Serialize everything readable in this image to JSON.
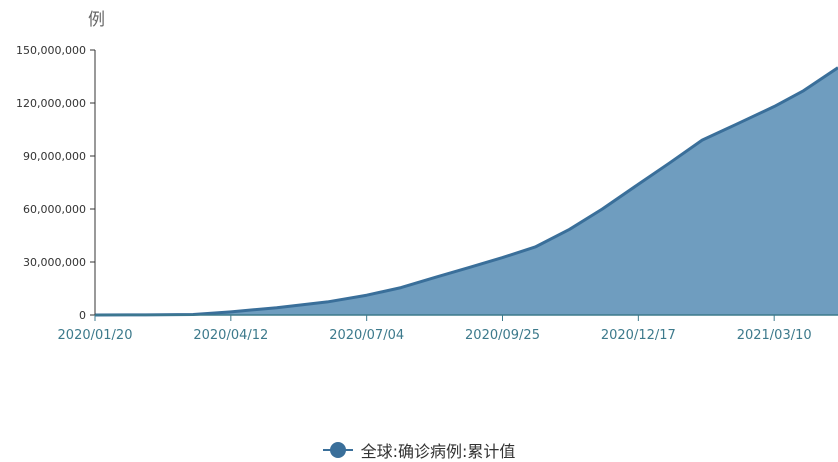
{
  "chart_data": {
    "type": "area",
    "ylabel": "例",
    "ylim": [
      0,
      150000000
    ],
    "yticks": [
      0,
      30000000,
      60000000,
      90000000,
      120000000,
      150000000
    ],
    "ytick_labels": [
      "0",
      "30,000,000",
      "60,000,000",
      "90,000,000",
      "120,000,000",
      "150,000,000"
    ],
    "xtick_labels": [
      "2020/01/20",
      "2020/04/12",
      "2020/07/04",
      "2020/09/25",
      "2020/12/17",
      "2021/03/10"
    ],
    "x_range": [
      "2020/01/20",
      "2021/04/18"
    ],
    "series": [
      {
        "name": "全球:确诊病例:累计值",
        "color": "#3a6f9a",
        "fill": "#6f9dbf",
        "points": [
          [
            "2020/01/20",
            0
          ],
          [
            "2020/02/20",
            80000
          ],
          [
            "2020/03/20",
            300000
          ],
          [
            "2020/04/12",
            1800000
          ],
          [
            "2020/05/10",
            4100000
          ],
          [
            "2020/06/10",
            7400000
          ],
          [
            "2020/07/04",
            11200000
          ],
          [
            "2020/07/25",
            15500000
          ],
          [
            "2020/08/15",
            21300000
          ],
          [
            "2020/09/05",
            27000000
          ],
          [
            "2020/09/25",
            32500000
          ],
          [
            "2020/10/15",
            38500000
          ],
          [
            "2020/11/05",
            48500000
          ],
          [
            "2020/11/25",
            60000000
          ],
          [
            "2020/12/17",
            74000000
          ],
          [
            "2021/01/05",
            86000000
          ],
          [
            "2021/01/25",
            99000000
          ],
          [
            "2021/02/15",
            108000000
          ],
          [
            "2021/03/10",
            118000000
          ],
          [
            "2021/03/28",
            127000000
          ],
          [
            "2021/04/18",
            140000000
          ]
        ]
      }
    ],
    "grid": false,
    "legend_position": "bottom-center"
  }
}
